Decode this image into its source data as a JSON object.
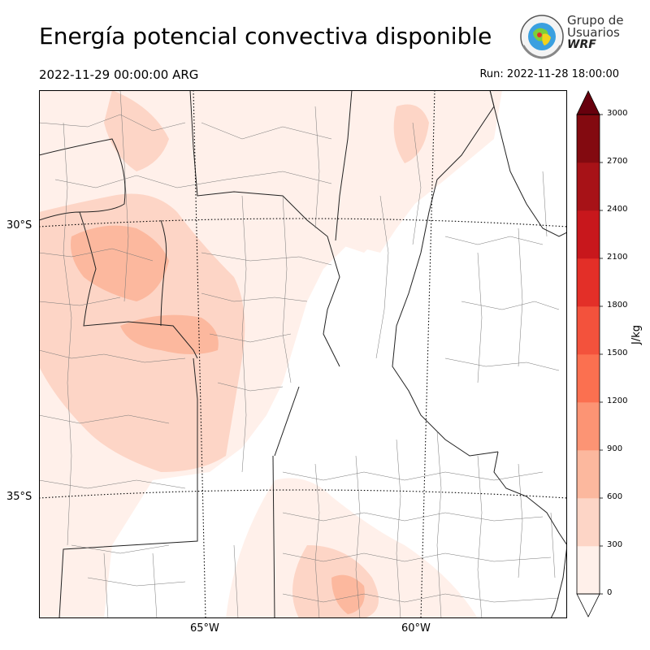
{
  "header": {
    "title": "Energía potencial convectiva disponible",
    "valid_time": "2022-11-29 00:00:00 ARG",
    "run_time": "Run: 2022-11-28 18:00:00"
  },
  "logo": {
    "line1": "Grupo de",
    "line2": "Usuarios",
    "line3": "WRF"
  },
  "map": {
    "lat_labels": [
      "30°S",
      "35°S"
    ],
    "lon_labels": [
      "65°W",
      "60°W"
    ]
  },
  "colorbar": {
    "unit": "J/kg",
    "ticks": [
      "0",
      "300",
      "600",
      "900",
      "1200",
      "1500",
      "1800",
      "2100",
      "2400",
      "2700",
      "3000"
    ],
    "colors": [
      "#fff0ea",
      "#fdd5c6",
      "#fcb89e",
      "#fc9474",
      "#fb7050",
      "#f3523c",
      "#e32f28",
      "#c8171c",
      "#a71217",
      "#830a10"
    ],
    "extend_color": "#67000d",
    "range": [
      0,
      3000
    ],
    "extend": "both"
  }
}
